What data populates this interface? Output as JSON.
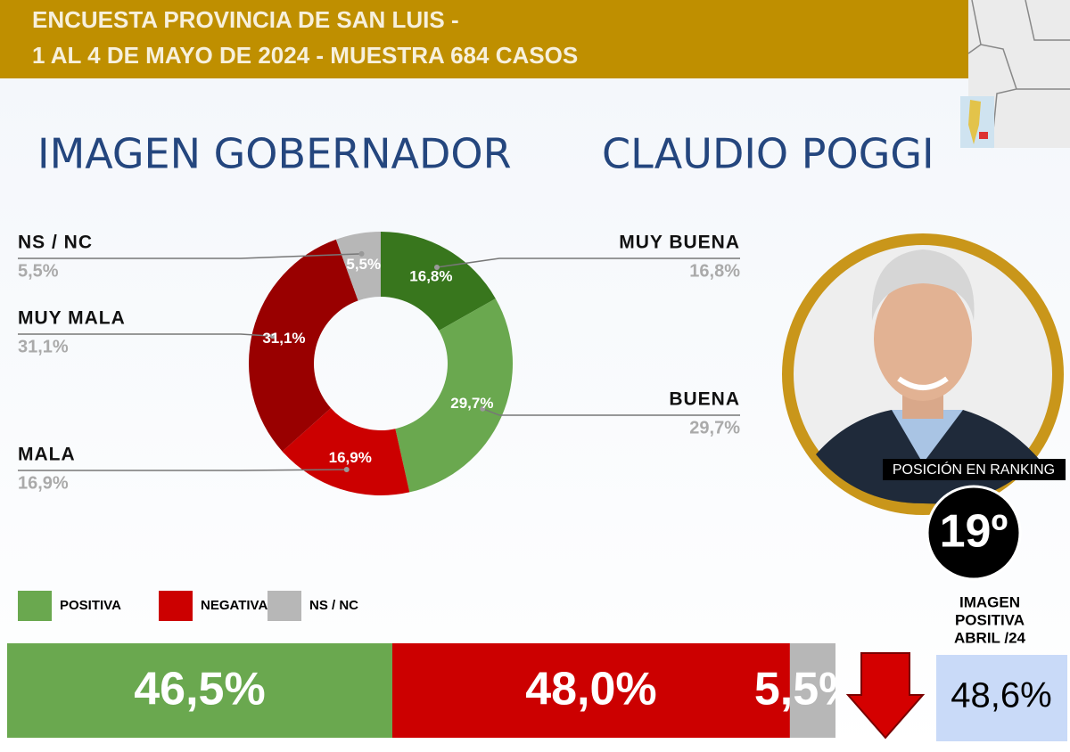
{
  "header": {
    "lines": [
      "ENCUESTA PROVINCIA DE SAN LUIS -",
      "1 AL 4 DE MAYO DE 2024 - MUESTRA 684 CASOS"
    ]
  },
  "title": {
    "left": "IMAGEN GOBERNADOR",
    "right": "CLAUDIO POGGI"
  },
  "chart_data": [
    {
      "type": "donut",
      "categories": [
        "MUY BUENA",
        "BUENA",
        "MALA",
        "MUY MALA",
        "NS / NC"
      ],
      "values": [
        16.8,
        29.7,
        16.9,
        31.1,
        5.5
      ],
      "value_labels": [
        "16,8%",
        "29,7%",
        "16,9%",
        "31,1%",
        "5,5%"
      ],
      "colors": [
        "#38761d",
        "#6aa84f",
        "#cc0000",
        "#990000",
        "#b7b7b7"
      ]
    },
    {
      "type": "stacked-bar",
      "xlim": [
        0,
        100
      ],
      "series": [
        {
          "name": "POSITIVA",
          "color": "#6aa84f",
          "values": [
            46.5
          ],
          "value_labels": [
            "46,5%"
          ]
        },
        {
          "name": "NEGATIVA",
          "color": "#cc0000",
          "values": [
            48.0
          ],
          "value_labels": [
            "48,0%"
          ]
        },
        {
          "name": "NS / NC",
          "color": "#b7b7b7",
          "values": [
            5.5
          ],
          "value_labels": [
            "5,5%"
          ]
        }
      ]
    }
  ],
  "ranking": {
    "label": "POSICIÓN EN RANKING",
    "position": "19º"
  },
  "previous": {
    "label": [
      "IMAGEN",
      "POSITIVA",
      "ABRIL /24"
    ],
    "value": "48,6%"
  }
}
